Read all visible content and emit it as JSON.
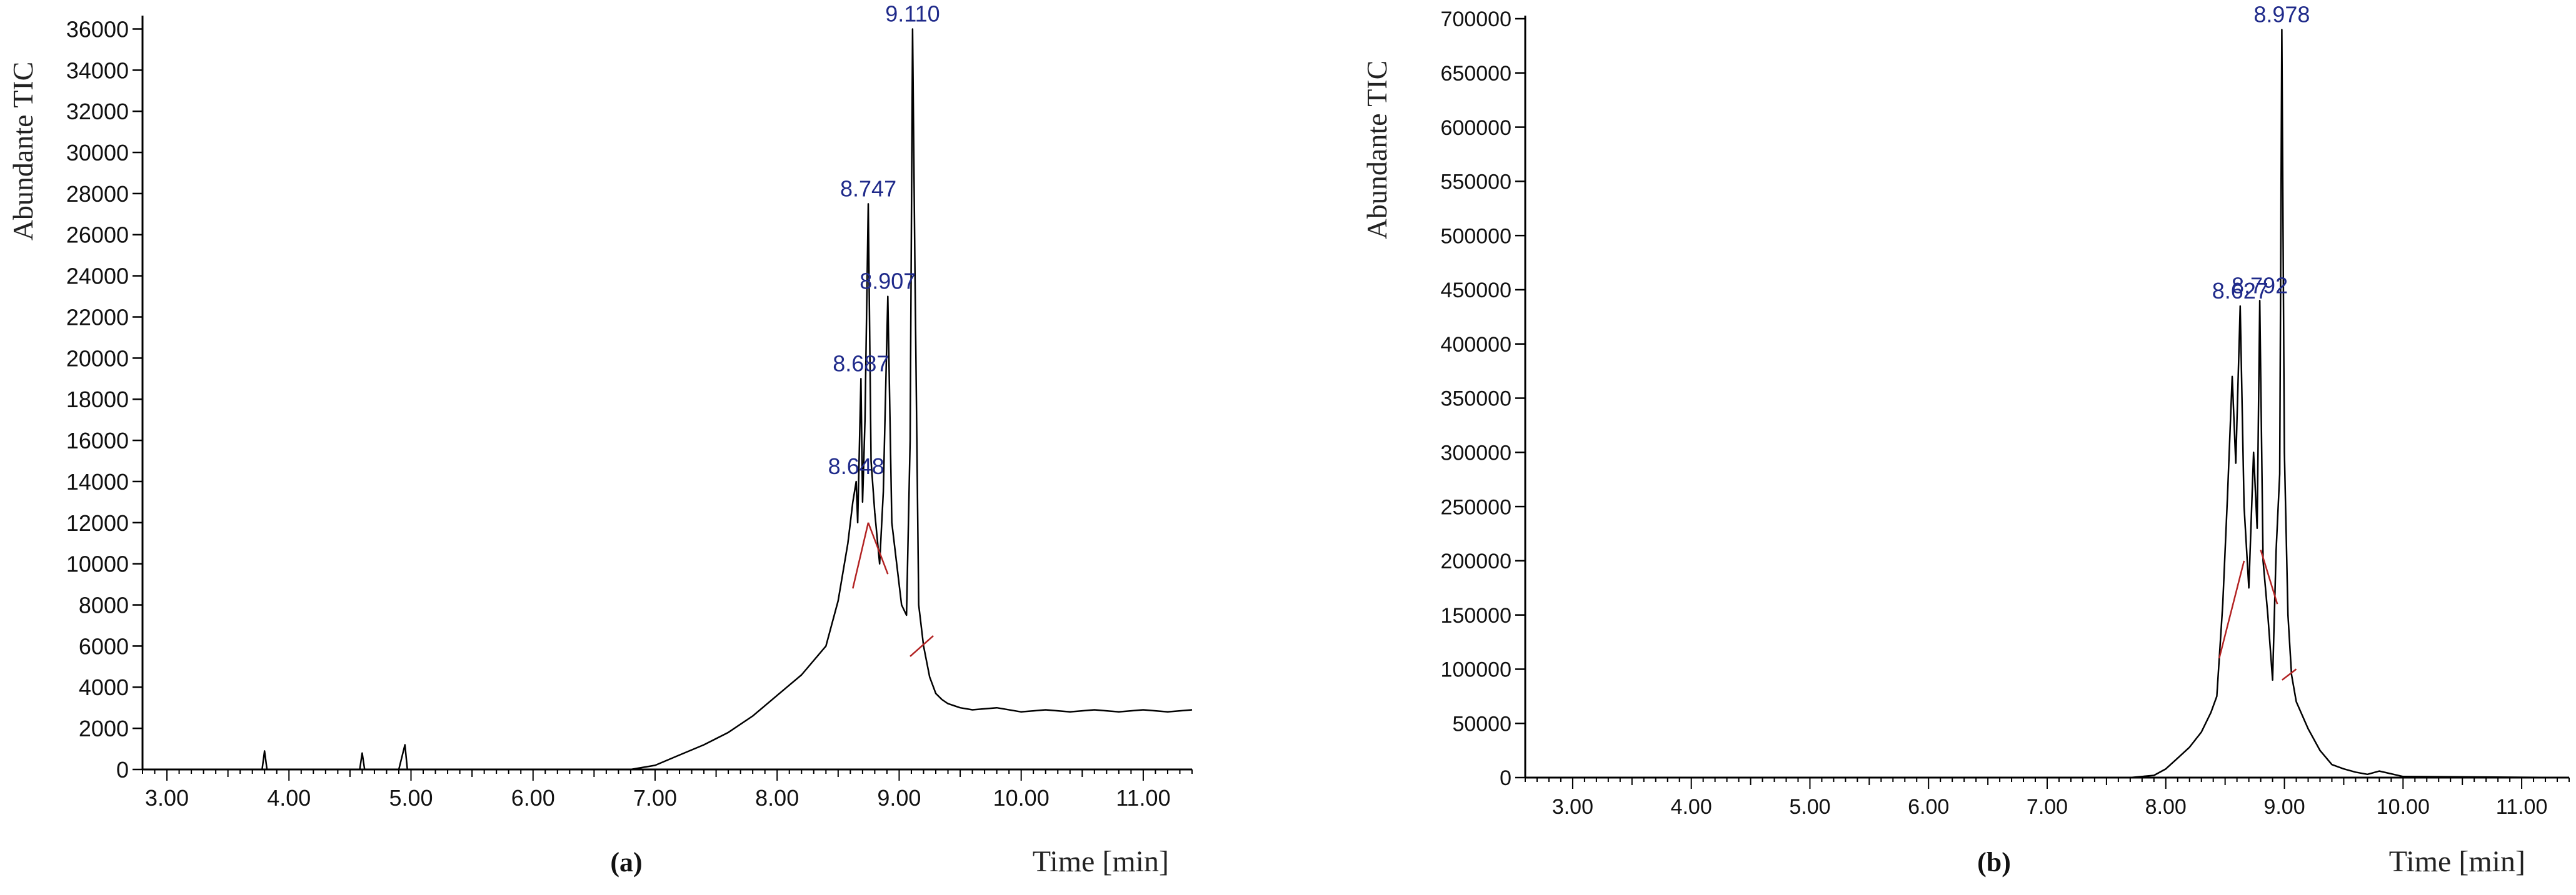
{
  "chart_data": [
    {
      "type": "line",
      "panel_label": "(a)",
      "xlabel": "Time [min]",
      "ylabel": "Abundante TIC",
      "xlim": [
        2.8,
        11.4
      ],
      "ylim": [
        0,
        36500
      ],
      "x_ticks": [
        3.0,
        4.0,
        5.0,
        6.0,
        7.0,
        8.0,
        9.0,
        10.0,
        11.0
      ],
      "x_tick_labels": [
        "3.00",
        "4.00",
        "5.00",
        "6.00",
        "7.00",
        "8.00",
        "9.00",
        "10.00",
        "11.00"
      ],
      "y_ticks": [
        0,
        2000,
        4000,
        6000,
        8000,
        10000,
        12000,
        14000,
        16000,
        18000,
        20000,
        22000,
        24000,
        26000,
        28000,
        30000,
        32000,
        34000,
        36000
      ],
      "y_tick_labels": [
        "0",
        "2000",
        "4000",
        "6000",
        "8000",
        "10000",
        "12000",
        "14000",
        "16000",
        "18000",
        "20000",
        "22000",
        "24000",
        "26000",
        "28000",
        "30000",
        "32000",
        "34000",
        "36000"
      ],
      "line_color": "#000000",
      "baseline_color": "#b22222",
      "label_color": "#1f2a8a",
      "series": [
        {
          "name": "TIC",
          "x": [
            2.8,
            3.6,
            3.78,
            3.8,
            3.82,
            4.5,
            4.58,
            4.6,
            4.62,
            4.9,
            4.95,
            4.97,
            5.0,
            6.0,
            6.8,
            7.0,
            7.2,
            7.4,
            7.6,
            7.8,
            8.0,
            8.2,
            8.4,
            8.5,
            8.58,
            8.62,
            8.648,
            8.66,
            8.687,
            8.7,
            8.72,
            8.747,
            8.77,
            8.8,
            8.84,
            8.87,
            8.907,
            8.94,
            8.98,
            9.02,
            9.06,
            9.09,
            9.11,
            9.13,
            9.16,
            9.2,
            9.25,
            9.3,
            9.35,
            9.4,
            9.5,
            9.6,
            9.8,
            10.0,
            10.2,
            10.4,
            10.6,
            10.8,
            11.0,
            11.2,
            11.4
          ],
          "y": [
            0,
            0,
            0,
            900,
            0,
            0,
            0,
            800,
            0,
            0,
            1200,
            0,
            0,
            0,
            0,
            200,
            700,
            1200,
            1800,
            2600,
            3600,
            4600,
            6000,
            8200,
            11000,
            13000,
            14000,
            12000,
            19000,
            13000,
            17000,
            27500,
            15000,
            12500,
            10000,
            13500,
            23000,
            12000,
            10000,
            8000,
            7500,
            16000,
            36000,
            24000,
            8000,
            6000,
            4500,
            3700,
            3400,
            3200,
            3000,
            2900,
            3000,
            2800,
            2900,
            2800,
            2900,
            2800,
            2900,
            2800,
            2900
          ]
        }
      ],
      "baselines": [
        {
          "x": [
            8.62,
            8.747
          ],
          "y": [
            8800,
            12000
          ]
        },
        {
          "x": [
            8.747,
            8.907
          ],
          "y": [
            12000,
            9500
          ]
        },
        {
          "x": [
            9.09,
            9.28
          ],
          "y": [
            5500,
            6500
          ]
        }
      ],
      "peaks": [
        {
          "x": 8.648,
          "y": 14000,
          "label": "8.648"
        },
        {
          "x": 8.687,
          "y": 19000,
          "label": "8.687"
        },
        {
          "x": 8.747,
          "y": 27500,
          "label": "8.747"
        },
        {
          "x": 8.907,
          "y": 23000,
          "label": "8.907"
        },
        {
          "x": 9.11,
          "y": 36000,
          "label": "9.110"
        }
      ]
    },
    {
      "type": "line",
      "panel_label": "(b)",
      "xlabel": "Time [min]",
      "ylabel": "Abundante TIC",
      "xlim": [
        2.6,
        11.4
      ],
      "ylim": [
        0,
        700000
      ],
      "x_ticks": [
        3.0,
        4.0,
        5.0,
        6.0,
        7.0,
        8.0,
        9.0,
        10.0,
        11.0
      ],
      "x_tick_labels": [
        "3.00",
        "4.00",
        "5.00",
        "6.00",
        "7.00",
        "8.00",
        "9.00",
        "10.00",
        "11.00"
      ],
      "y_ticks": [
        0,
        50000,
        100000,
        150000,
        200000,
        250000,
        300000,
        350000,
        400000,
        450000,
        500000,
        550000,
        600000,
        650000,
        700000
      ],
      "y_tick_labels": [
        "0",
        "50000",
        "100000",
        "150000",
        "200000",
        "250000",
        "300000",
        "350000",
        "400000",
        "450000",
        "500000",
        "550000",
        "600000",
        "650000",
        "700000"
      ],
      "line_color": "#000000",
      "baseline_color": "#b22222",
      "label_color": "#1f2a8a",
      "series": [
        {
          "name": "TIC",
          "x": [
            2.6,
            7.7,
            7.9,
            8.0,
            8.1,
            8.2,
            8.3,
            8.38,
            8.43,
            8.48,
            8.52,
            8.56,
            8.59,
            8.627,
            8.66,
            8.7,
            8.74,
            8.77,
            8.792,
            8.82,
            8.86,
            8.9,
            8.93,
            8.96,
            8.978,
            9.0,
            9.03,
            9.06,
            9.1,
            9.2,
            9.3,
            9.4,
            9.5,
            9.6,
            9.7,
            9.8,
            10.0,
            11.4
          ],
          "y": [
            0,
            0,
            2000,
            8000,
            18000,
            28000,
            42000,
            60000,
            75000,
            160000,
            260000,
            370000,
            290000,
            435000,
            250000,
            175000,
            300000,
            230000,
            440000,
            200000,
            150000,
            90000,
            210000,
            280000,
            690000,
            300000,
            150000,
            95000,
            70000,
            45000,
            25000,
            12000,
            8000,
            5000,
            3000,
            6000,
            1000,
            0
          ]
        }
      ],
      "baselines": [
        {
          "x": [
            8.45,
            8.66
          ],
          "y": [
            110000,
            200000
          ]
        },
        {
          "x": [
            8.8,
            8.94
          ],
          "y": [
            210000,
            160000
          ]
        },
        {
          "x": [
            8.98,
            9.1
          ],
          "y": [
            90000,
            100000
          ]
        }
      ],
      "peaks": [
        {
          "x": 8.627,
          "y": 435000,
          "label": "8.627"
        },
        {
          "x": 8.792,
          "y": 440000,
          "label": "8.792"
        },
        {
          "x": 8.978,
          "y": 690000,
          "label": "8.978"
        }
      ]
    }
  ]
}
